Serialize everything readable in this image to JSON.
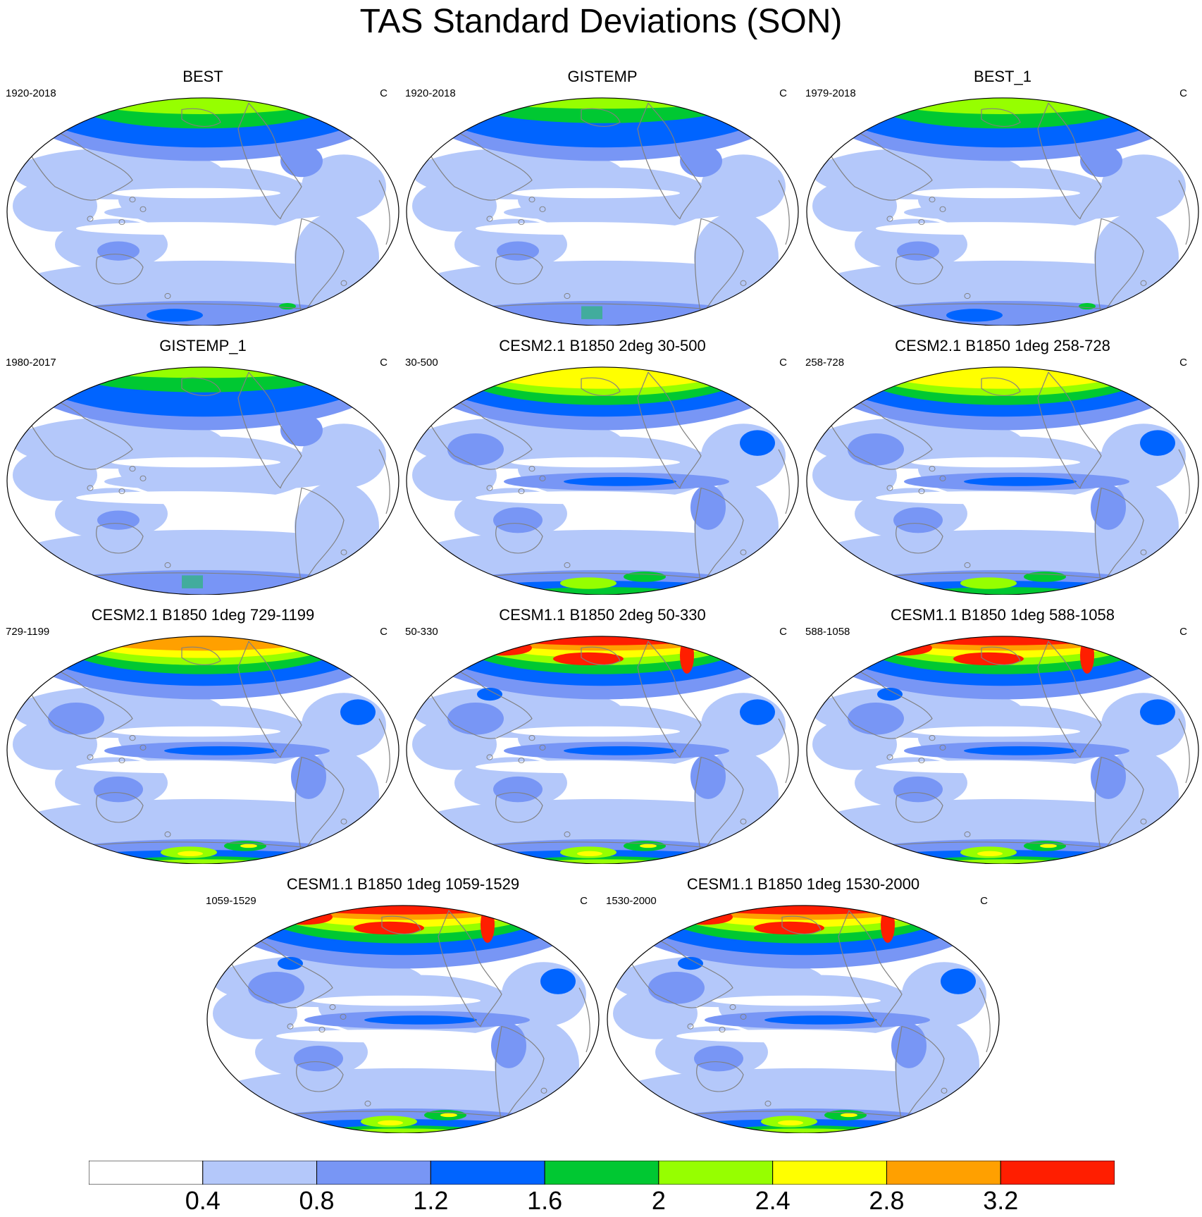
{
  "title": "TAS Standard Deviations (SON)",
  "panels": [
    {
      "title": "BEST",
      "left": "1920-2018",
      "right": "C",
      "pattern": "obs-a"
    },
    {
      "title": "GISTEMP",
      "left": "1920-2018",
      "right": "C",
      "pattern": "obs-b"
    },
    {
      "title": "BEST_1",
      "left": "1979-2018",
      "right": "C",
      "pattern": "obs-a"
    },
    {
      "title": "GISTEMP_1",
      "left": "1980-2017",
      "right": "C",
      "pattern": "obs-b"
    },
    {
      "title": "CESM2.1 B1850 2deg 30-500",
      "left": "30-500",
      "right": "C",
      "pattern": "model-a"
    },
    {
      "title": "CESM2.1 B1850 1deg 258-728",
      "left": "258-728",
      "right": "C",
      "pattern": "model-a"
    },
    {
      "title": "CESM2.1 B1850 1deg 729-1199",
      "left": "729-1199",
      "right": "C",
      "pattern": "model-b"
    },
    {
      "title": "CESM1.1 B1850 2deg 50-330",
      "left": "50-330",
      "right": "C",
      "pattern": "model-c"
    },
    {
      "title": "CESM1.1 B1850 1deg 588-1058",
      "left": "588-1058",
      "right": "C",
      "pattern": "model-c"
    },
    {
      "title": "CESM1.1 B1850 1deg 1059-1529",
      "left": "1059-1529",
      "right": "C",
      "pattern": "model-c"
    },
    {
      "title": "CESM1.1 B1850 1deg 1530-2000",
      "left": "1530-2000",
      "right": "C",
      "pattern": "model-c"
    }
  ],
  "colorbar": {
    "colors": [
      "#ffffff",
      "#b4c8fa",
      "#7896f5",
      "#0064ff",
      "#00c832",
      "#96ff00",
      "#ffff00",
      "#ffa000",
      "#ff1e00"
    ],
    "labels": [
      "0.4",
      "0.8",
      "1.2",
      "1.6",
      "2",
      "2.4",
      "2.8",
      "3.2"
    ]
  }
}
